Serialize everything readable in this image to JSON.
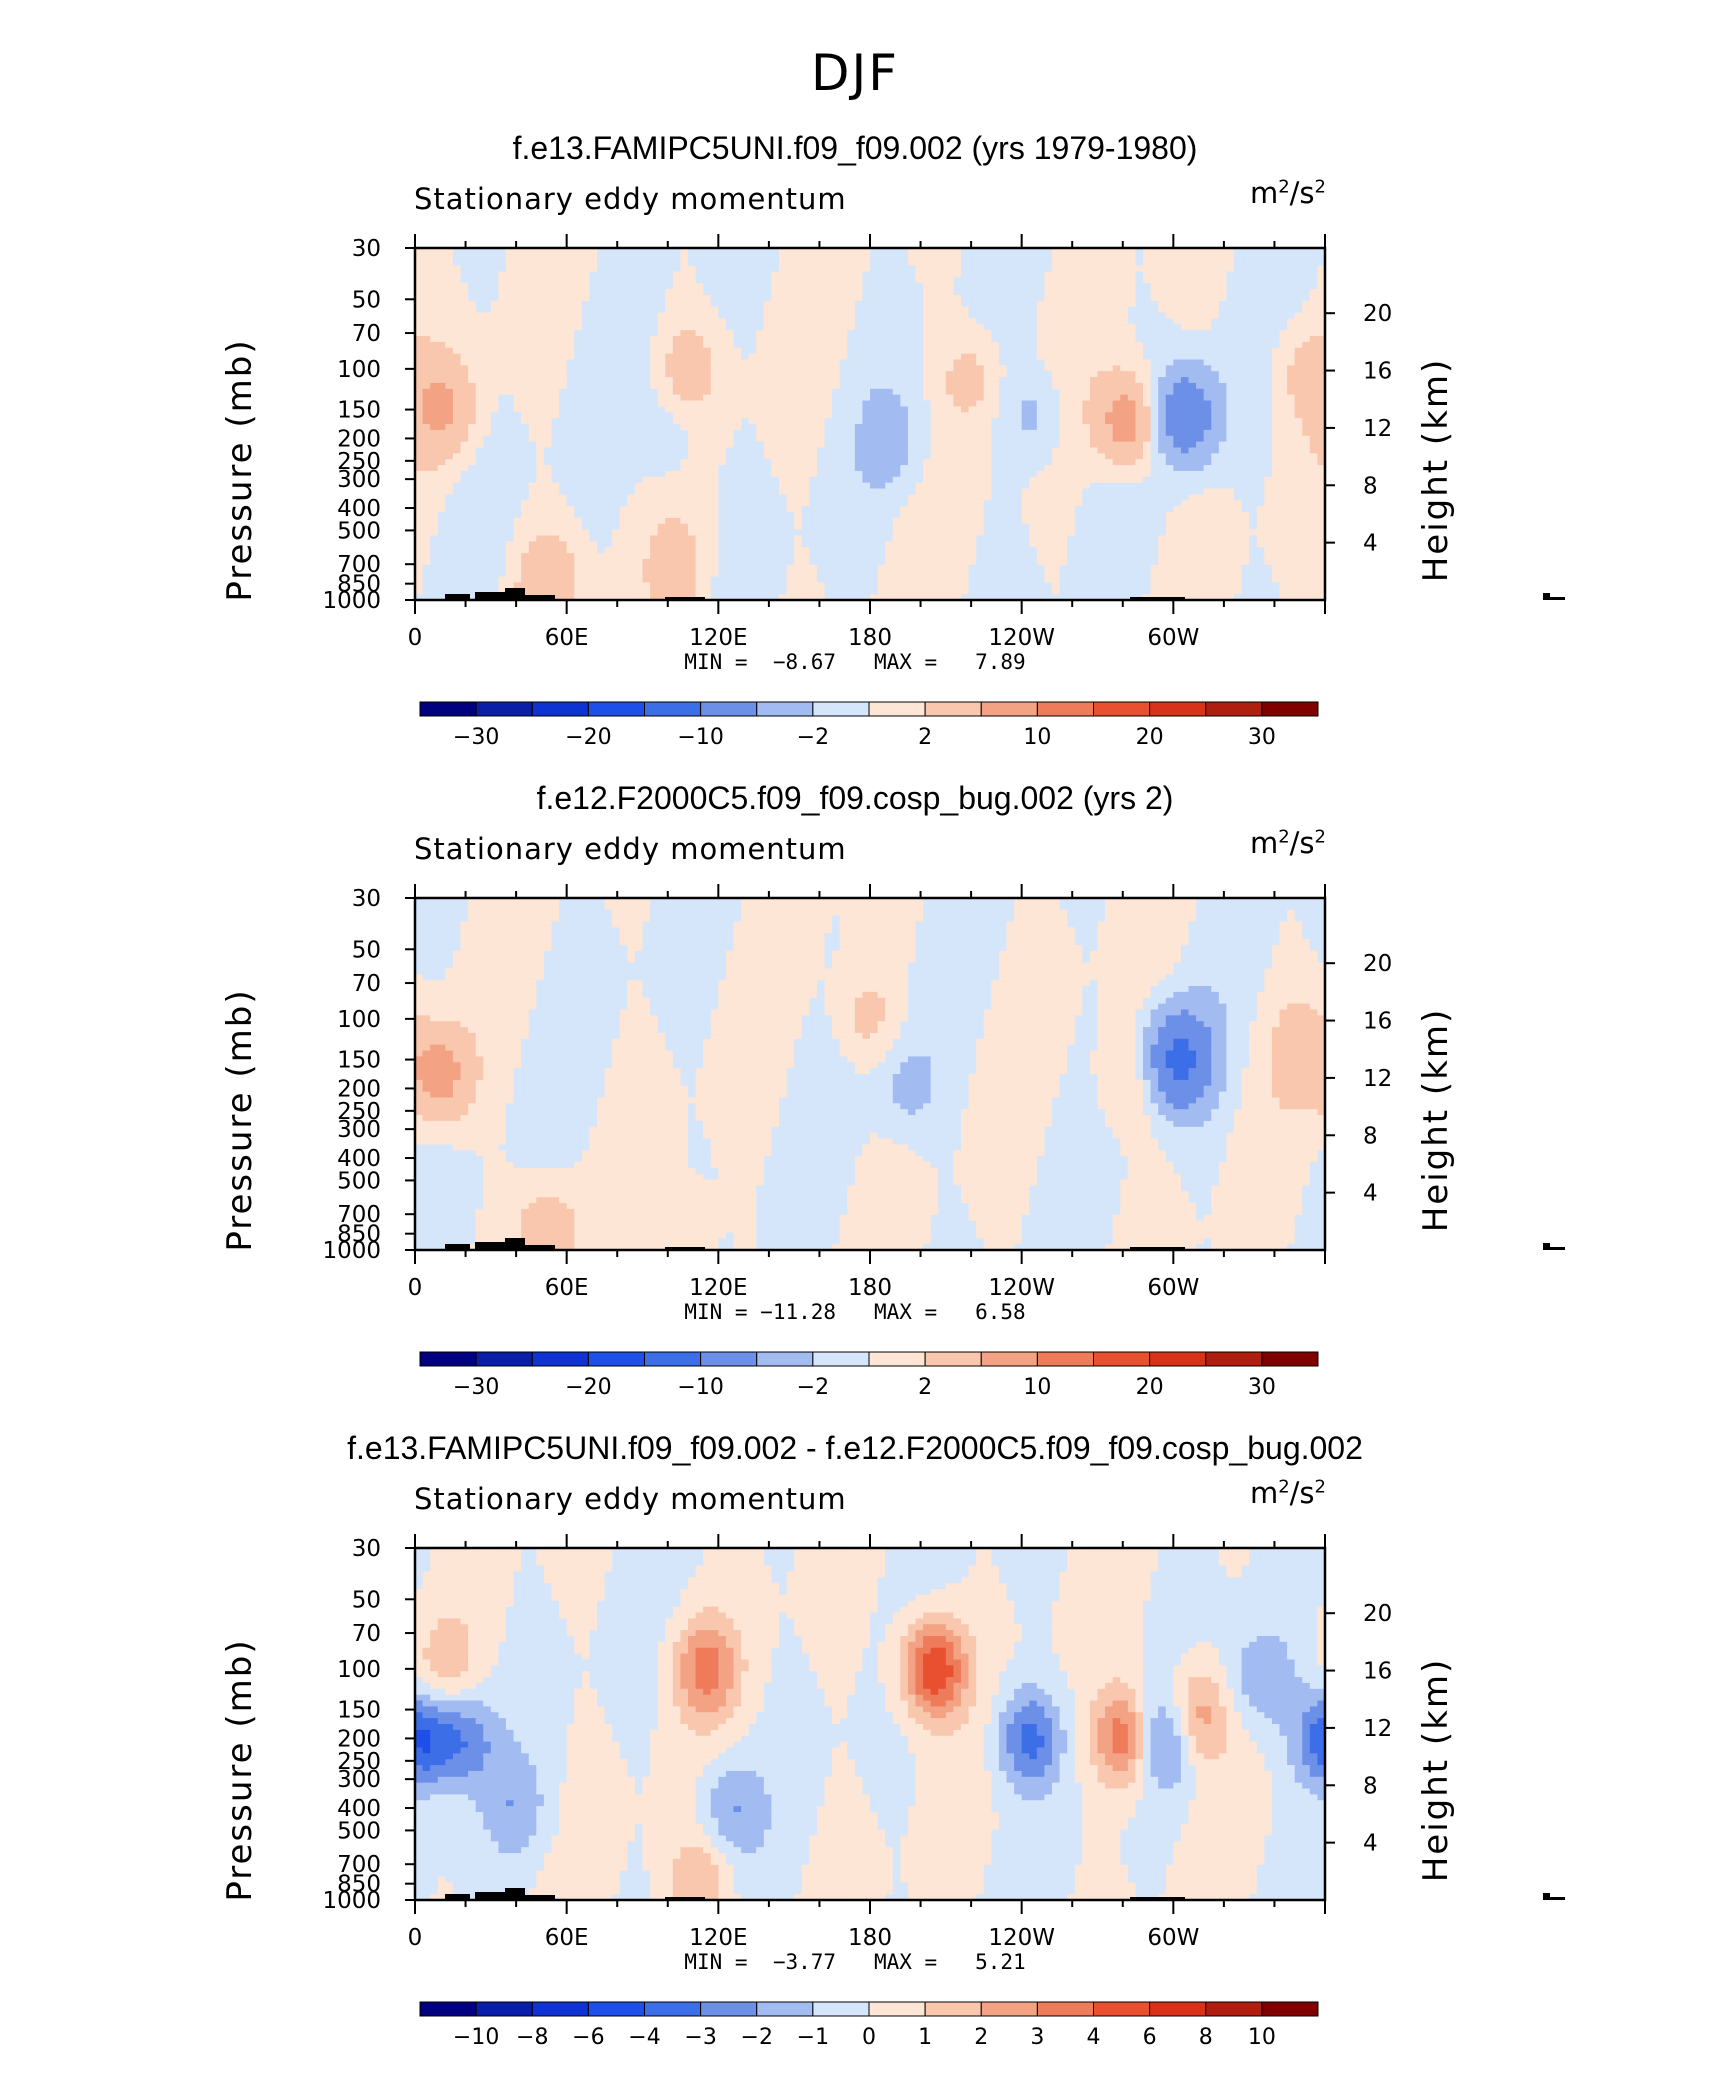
{
  "page": {
    "title": "DJF"
  },
  "common": {
    "field_label": "Stationary eddy momentum",
    "units": "m",
    "units_sup1": "2",
    "units_mid": "/s",
    "units_sup2": "2",
    "ylabel_left": "Pressure (mb)",
    "ylabel_right": "Height (km)",
    "min_label": "MIN =",
    "max_label": "MAX ="
  },
  "chart_data": [
    {
      "type": "heatmap",
      "title": "f.e13.FAMIPC5UNI.f09_f09.002 (yrs 1979-1980)",
      "subtitle": "Stationary eddy momentum",
      "units": "m2/s2",
      "x_ticks": [
        "0",
        "60E",
        "120E",
        "180",
        "120W",
        "60W"
      ],
      "y_ticks_left": [
        "30",
        "50",
        "70",
        "100",
        "150",
        "200",
        "250",
        "300",
        "400",
        "500",
        "700",
        "850",
        "1000"
      ],
      "y_ticks_right": [
        "20",
        "16",
        "12",
        "8",
        "4"
      ],
      "min": "−8.67",
      "max": "7.89",
      "colorbar_labels": [
        "−30",
        "−20",
        "−10",
        "−2",
        "2",
        "10",
        "20",
        "30"
      ],
      "features": [
        {
          "lon": 12,
          "p": 150,
          "v": 5
        },
        {
          "lon": 108,
          "p": 100,
          "v": 3
        },
        {
          "lon": 350,
          "p": 100,
          "v": 2.5
        },
        {
          "lon": 220,
          "p": 110,
          "v": 3
        },
        {
          "lon": 282,
          "p": 170,
          "v": 7.9
        },
        {
          "lon": 305,
          "p": 160,
          "v": -8.7
        },
        {
          "lon": 245,
          "p": 160,
          "v": -3
        },
        {
          "lon": 190,
          "p": 210,
          "v": -2.5
        },
        {
          "lon": 100,
          "p": 200,
          "v": -2.5
        },
        {
          "lon": 52,
          "p": 820,
          "v": 4
        },
        {
          "lon": 105,
          "p": 800,
          "v": 3
        }
      ]
    },
    {
      "type": "heatmap",
      "title": "f.e12.F2000C5.f09_f09.cosp_bug.002 (yrs 2)",
      "subtitle": "Stationary eddy momentum",
      "units": "m2/s2",
      "x_ticks": [
        "0",
        "60E",
        "120E",
        "180",
        "120W",
        "60W"
      ],
      "y_ticks_left": [
        "30",
        "50",
        "70",
        "100",
        "150",
        "200",
        "250",
        "300",
        "400",
        "500",
        "700",
        "850",
        "1000"
      ],
      "y_ticks_right": [
        "20",
        "16",
        "12",
        "8",
        "4"
      ],
      "min": "−11.28",
      "max": "6.58",
      "colorbar_labels": [
        "−30",
        "−20",
        "−10",
        "−2",
        "2",
        "10",
        "20",
        "30"
      ],
      "features": [
        {
          "lon": 10,
          "p": 175,
          "v": 6.6
        },
        {
          "lon": 178,
          "p": 100,
          "v": 3
        },
        {
          "lon": 350,
          "p": 130,
          "v": 2.5
        },
        {
          "lon": 282,
          "p": 190,
          "v": 2.5
        },
        {
          "lon": 302,
          "p": 150,
          "v": -11.3
        },
        {
          "lon": 195,
          "p": 200,
          "v": -3
        },
        {
          "lon": 52,
          "p": 800,
          "v": 4
        },
        {
          "lon": 105,
          "p": 850,
          "v": 2.5
        }
      ]
    },
    {
      "type": "heatmap",
      "title": "f.e13.FAMIPC5UNI.f09_f09.002 - f.e12.F2000C5.f09_f09.cosp_bug.002",
      "subtitle": "Stationary eddy momentum",
      "units": "m2/s2",
      "x_ticks": [
        "0",
        "60E",
        "120E",
        "180",
        "120W",
        "60W"
      ],
      "y_ticks_left": [
        "30",
        "50",
        "70",
        "100",
        "150",
        "200",
        "250",
        "300",
        "400",
        "500",
        "700",
        "850",
        "1000"
      ],
      "y_ticks_right": [
        "20",
        "16",
        "12",
        "8",
        "4"
      ],
      "min": "−3.77",
      "max": "5.21",
      "colorbar_labels": [
        "−10",
        "−8",
        "−6",
        "−4",
        "−3",
        "−2",
        "−1",
        "0",
        "1",
        "2",
        "3",
        "4",
        "6",
        "8",
        "10"
      ],
      "features": [
        {
          "lon": 115,
          "p": 100,
          "v": 3.2
        },
        {
          "lon": 205,
          "p": 100,
          "v": 5.2
        },
        {
          "lon": 282,
          "p": 200,
          "v": 4.5
        },
        {
          "lon": 308,
          "p": 160,
          "v": 3
        },
        {
          "lon": 243,
          "p": 200,
          "v": -3.3
        },
        {
          "lon": 295,
          "p": 200,
          "v": -3.8
        },
        {
          "lon": 5,
          "p": 200,
          "v": -2.5
        },
        {
          "lon": 20,
          "p": 200,
          "v": -2.5
        },
        {
          "lon": 335,
          "p": 110,
          "v": -2
        },
        {
          "lon": 358,
          "p": 200,
          "v": -2
        },
        {
          "lon": 125,
          "p": 400,
          "v": -2
        },
        {
          "lon": 112,
          "p": 850,
          "v": 2
        },
        {
          "lon": 40,
          "p": 400,
          "v": -1.5
        },
        {
          "lon": 12,
          "p": 100,
          "v": 1.5
        }
      ]
    }
  ],
  "colors": {
    "bar_30": [
      "#000080",
      "#0a1ea8",
      "#0f32d2",
      "#1e4fe8",
      "#3c6ee8",
      "#6c8fe8",
      "#a2bcf2",
      "#d6e6fa",
      "#fde6d6",
      "#f9c7ae",
      "#f3a283",
      "#ee7c5a",
      "#e85030",
      "#d8321a",
      "#b01e10",
      "#800000"
    ],
    "bar_10": [
      "#000080",
      "#0a1ea8",
      "#0f32d2",
      "#1e4fe8",
      "#3c6ee8",
      "#6c8fe8",
      "#a2bcf2",
      "#d6e6fa",
      "#fde6d6",
      "#f9c7ae",
      "#f3a283",
      "#ee7c5a",
      "#e85030",
      "#d8321a",
      "#b01e10",
      "#800000"
    ]
  }
}
